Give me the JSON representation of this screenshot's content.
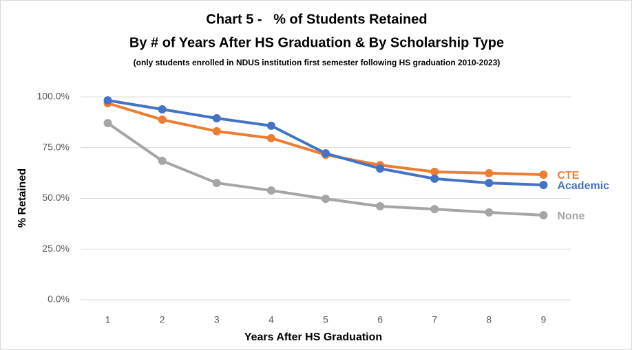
{
  "chart_data": {
    "type": "line",
    "title": [
      "Chart 5 -   % of Students Retained",
      "By # of Years After HS Graduation & By Scholarship Type"
    ],
    "subtitle": "(only students enrolled in NDUS institution first semester following HS graduation 2010-2023)",
    "x_label": "Years After HS Graduation",
    "y_label": "% Retained",
    "categories": [
      "1",
      "2",
      "3",
      "4",
      "5",
      "6",
      "7",
      "8",
      "9"
    ],
    "series": [
      {
        "name": "None",
        "color": "#a5a5a5",
        "values": [
          87.1,
          68.5,
          57.6,
          53.9,
          49.8,
          46.1,
          44.7,
          43.1,
          41.7
        ]
      },
      {
        "name": "CTE",
        "color": "#ed7d31",
        "values": [
          96.9,
          88.8,
          83.1,
          79.7,
          71.5,
          66.4,
          63.1,
          62.4,
          61.7
        ]
      },
      {
        "name": "Academic",
        "color": "#4472c4",
        "values": [
          98.3,
          93.9,
          89.5,
          85.8,
          72.2,
          64.7,
          59.7,
          57.6,
          56.6
        ]
      }
    ],
    "ylim": [
      0,
      100
    ],
    "yticks": [
      {
        "value": 0,
        "label": "0.0%"
      },
      {
        "value": 25,
        "label": "25.0%"
      },
      {
        "value": 50,
        "label": "50.0%"
      },
      {
        "value": 75,
        "label": "75.0%"
      },
      {
        "value": 100,
        "label": "100.0%"
      }
    ],
    "grid": true
  }
}
